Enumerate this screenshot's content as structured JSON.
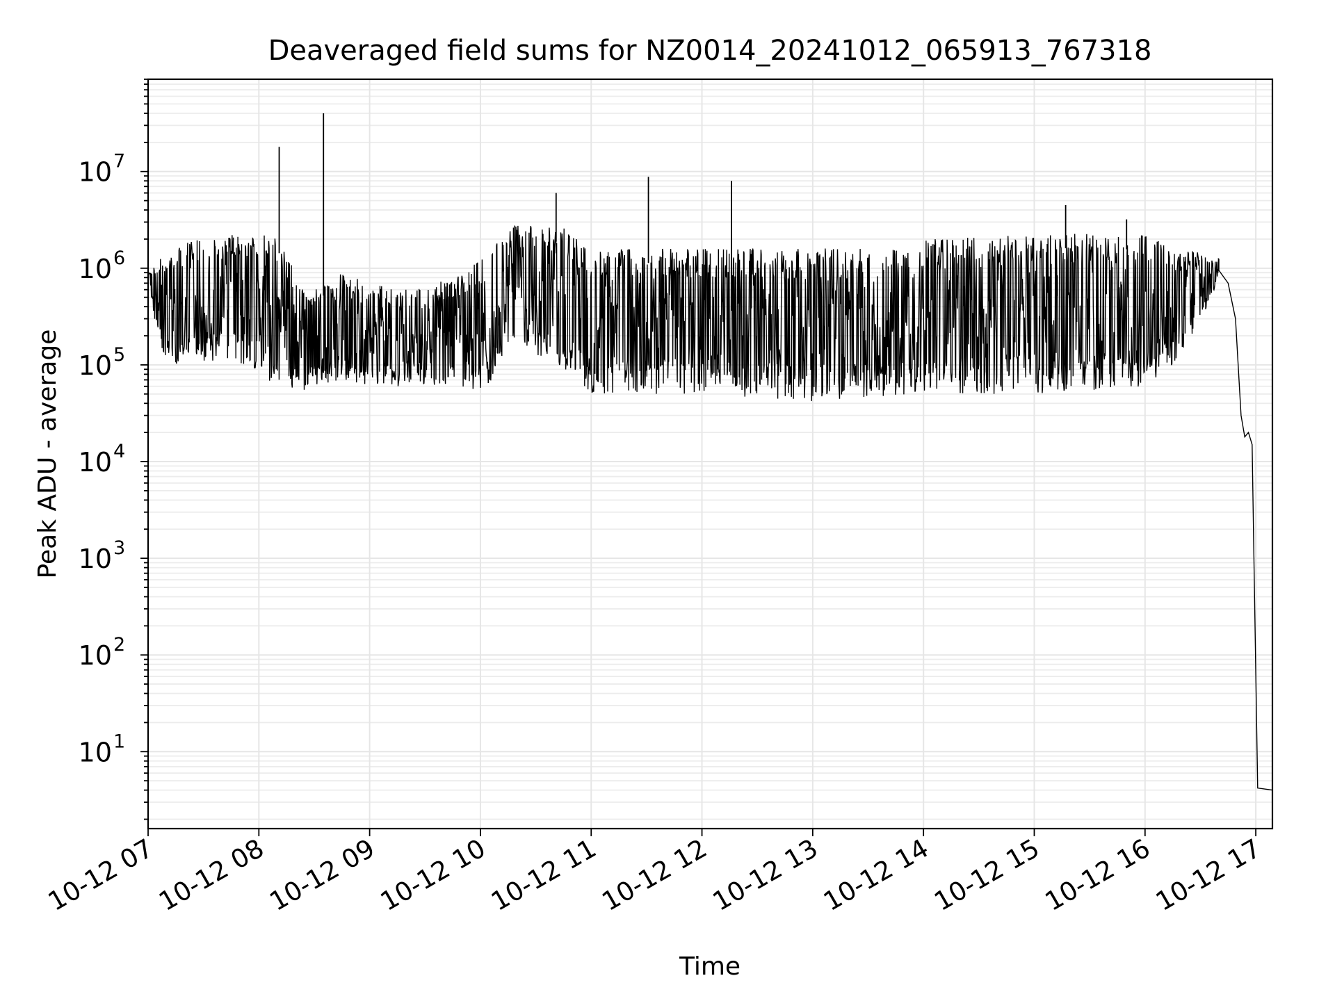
{
  "chart_data": {
    "type": "line",
    "title": "Deaveraged field sums for NZ0014_20241012_065913_767318",
    "xlabel": "Time",
    "ylabel": "Peak ADU - average",
    "y_scale": "log",
    "grid": "major and minor",
    "xlim": [
      "2024-10-12 07:00",
      "2024-10-12 17:09"
    ],
    "ylim": [
      1.6,
      90000000
    ],
    "x_ticks": [
      {
        "x": "2024-10-12 07:00",
        "label": "10-12 07"
      },
      {
        "x": "2024-10-12 08:00",
        "label": "10-12 08"
      },
      {
        "x": "2024-10-12 09:00",
        "label": "10-12 09"
      },
      {
        "x": "2024-10-12 10:00",
        "label": "10-12 10"
      },
      {
        "x": "2024-10-12 11:00",
        "label": "10-12 11"
      },
      {
        "x": "2024-10-12 12:00",
        "label": "10-12 12"
      },
      {
        "x": "2024-10-12 13:00",
        "label": "10-12 13"
      },
      {
        "x": "2024-10-12 14:00",
        "label": "10-12 14"
      },
      {
        "x": "2024-10-12 15:00",
        "label": "10-12 15"
      },
      {
        "x": "2024-10-12 16:00",
        "label": "10-12 16"
      },
      {
        "x": "2024-10-12 17:00",
        "label": "10-12 17"
      }
    ],
    "y_ticks": [
      {
        "value": 10,
        "base": "10",
        "exp": "1"
      },
      {
        "value": 100,
        "base": "10",
        "exp": "2"
      },
      {
        "value": 1000,
        "base": "10",
        "exp": "3"
      },
      {
        "value": 10000,
        "base": "10",
        "exp": "4"
      },
      {
        "value": 100000,
        "base": "10",
        "exp": "5"
      },
      {
        "value": 1000000,
        "base": "10",
        "exp": "6"
      },
      {
        "value": 10000000,
        "base": "10",
        "exp": "7"
      }
    ],
    "series": [
      {
        "color": "#000000",
        "envelope": [
          {
            "x": "2024-10-12 07:00",
            "low": 550000,
            "high": 900000
          },
          {
            "x": "2024-10-12 07:10",
            "low": 90000,
            "high": 1700000
          },
          {
            "x": "2024-10-12 07:30",
            "low": 110000,
            "high": 2000000
          },
          {
            "x": "2024-10-12 07:50",
            "low": 100000,
            "high": 2300000
          },
          {
            "x": "2024-10-12 08:10",
            "low": 60000,
            "high": 2200000
          },
          {
            "x": "2024-10-12 08:25",
            "low": 55000,
            "high": 600000
          },
          {
            "x": "2024-10-12 08:45",
            "low": 70000,
            "high": 900000
          },
          {
            "x": "2024-10-12 09:00",
            "low": 60000,
            "high": 700000
          },
          {
            "x": "2024-10-12 09:30",
            "low": 60000,
            "high": 600000
          },
          {
            "x": "2024-10-12 10:00",
            "low": 50000,
            "high": 1200000
          },
          {
            "x": "2024-10-12 10:20",
            "low": 150000,
            "high": 3000000
          },
          {
            "x": "2024-10-12 10:45",
            "low": 90000,
            "high": 2600000
          },
          {
            "x": "2024-10-12 11:00",
            "low": 50000,
            "high": 1600000
          },
          {
            "x": "2024-10-12 12:00",
            "low": 50000,
            "high": 1600000
          },
          {
            "x": "2024-10-12 13:00",
            "low": 42000,
            "high": 1600000
          },
          {
            "x": "2024-10-12 13:55",
            "low": 48000,
            "high": 1600000
          },
          {
            "x": "2024-10-12 14:00",
            "low": 50000,
            "high": 2000000
          },
          {
            "x": "2024-10-12 15:00",
            "low": 50000,
            "high": 2300000
          },
          {
            "x": "2024-10-12 16:00",
            "low": 60000,
            "high": 2200000
          },
          {
            "x": "2024-10-12 16:20",
            "low": 120000,
            "high": 1600000
          },
          {
            "x": "2024-10-12 16:40",
            "low": 700000,
            "high": 1300000
          }
        ],
        "spikes": [
          {
            "x": "2024-10-12 08:11",
            "value": 18000000
          },
          {
            "x": "2024-10-12 08:35",
            "value": 40000000
          },
          {
            "x": "2024-10-12 10:41",
            "value": 6000000
          },
          {
            "x": "2024-10-12 11:31",
            "value": 8800000
          },
          {
            "x": "2024-10-12 12:16",
            "value": 8000000
          },
          {
            "x": "2024-10-12 15:17",
            "value": 4500000
          },
          {
            "x": "2024-10-12 15:50",
            "value": 3200000
          }
        ],
        "tail": [
          {
            "x": "2024-10-12 16:40",
            "value": 950000
          },
          {
            "x": "2024-10-12 16:45",
            "value": 700000
          },
          {
            "x": "2024-10-12 16:49",
            "value": 300000
          },
          {
            "x": "2024-10-12 16:52",
            "value": 30000
          },
          {
            "x": "2024-10-12 16:54",
            "value": 18000
          },
          {
            "x": "2024-10-12 16:56",
            "value": 20000
          },
          {
            "x": "2024-10-12 16:58",
            "value": 15000
          },
          {
            "x": "2024-10-12 16:59",
            "value": 1000
          },
          {
            "x": "2024-10-12 17:01",
            "value": 4.2
          },
          {
            "x": "2024-10-12 17:09",
            "value": 4.0
          }
        ]
      }
    ]
  }
}
